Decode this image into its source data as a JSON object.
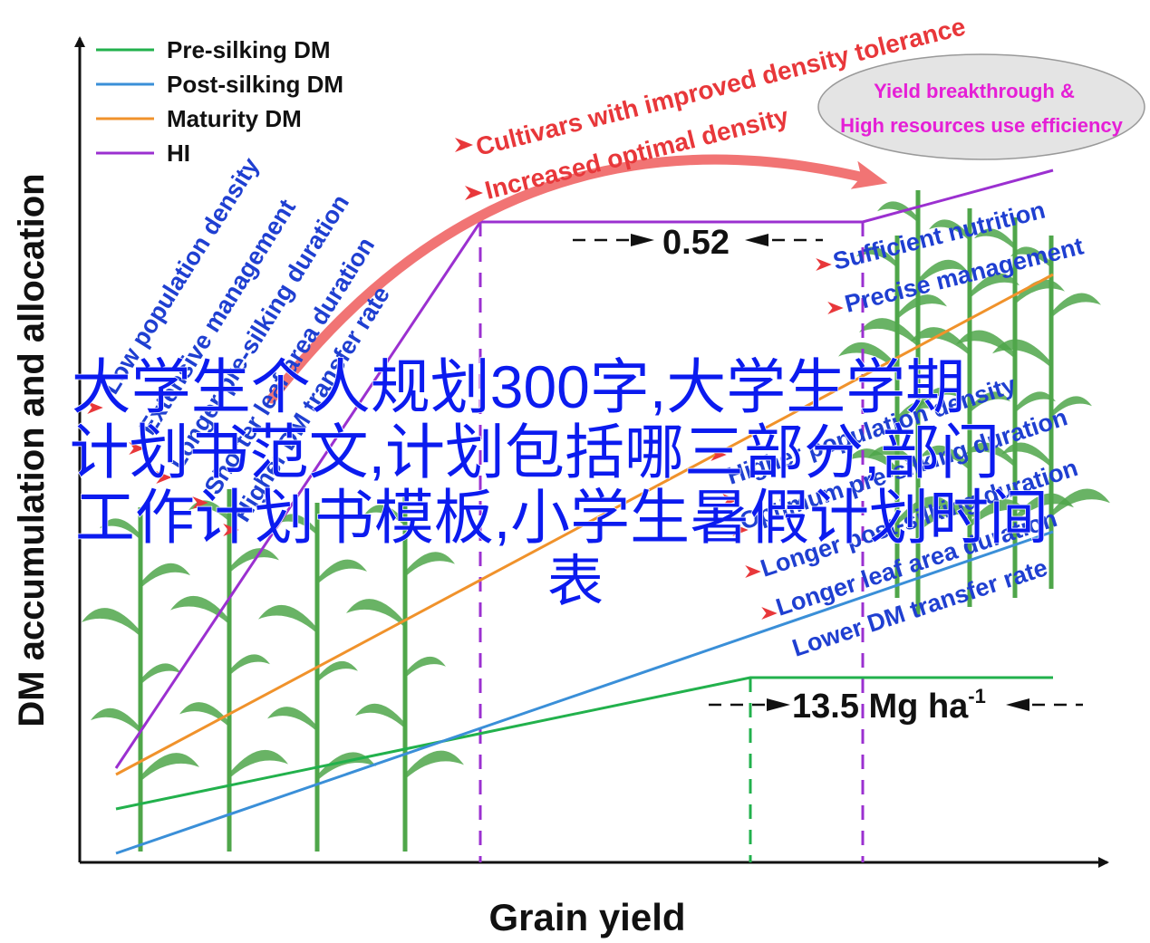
{
  "axes": {
    "x_label": "Grain yield",
    "y_label": "DM accumulation and allocation"
  },
  "legend": [
    {
      "label": "Pre-silking DM",
      "color": "#22b14c"
    },
    {
      "label": "Post-silking DM",
      "color": "#3a8fd8"
    },
    {
      "label": "Maturity DM",
      "color": "#f0922b"
    },
    {
      "label": "HI",
      "color": "#9b30d0"
    }
  ],
  "annotations": {
    "hi_value": "0.52",
    "yield_value": "13.5 Mg ha",
    "yield_exponent": "-1",
    "arc_line1": "Cultivars with improved density tolerance",
    "arc_line2": "Increased optimal density",
    "ellipse_line1": "Yield breakthrough &",
    "ellipse_line2": "High resources use efficiency"
  },
  "left_factors": [
    "Low population density",
    "Extensive management",
    "Longer pre-silking duration",
    "Shorter leaf area duration",
    "Higher DM transfer rate"
  ],
  "right_factors_top": [
    "Sufficient nutrition",
    "Precise management"
  ],
  "right_factors_bottom": [
    "Higher population density",
    "Optimum pre-silking duration",
    "Longer post-silking duration",
    "Longer leaf area duration",
    "Lower DM transfer rate"
  ],
  "watermark": {
    "line1": "大学生个人规划300字,大学生学期",
    "line2": "计划书范文,计划包括哪三部分,部门",
    "line3": "工作计划书模板,小学生暑假计划时间",
    "line4": "表"
  },
  "colors": {
    "annotation_red": "#e8373a",
    "annotation_blue": "#1f3fd1",
    "ellipse_text": "#e51fd6",
    "arrow_salmon": "#f17474",
    "watermark_blue": "#0b1bef",
    "plant_green": "#4fa64a"
  }
}
